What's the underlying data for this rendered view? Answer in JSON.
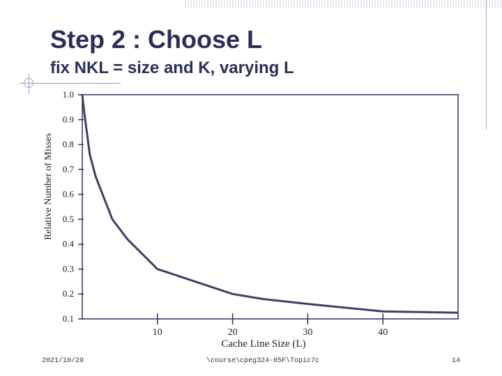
{
  "slide": {
    "title": "Step 2 : Choose L",
    "subtitle": "fix NKL = size and K, varying L"
  },
  "footer": {
    "date": "2021/10/29",
    "path": "\\course\\cpeg324-05F\\Topic7c",
    "page": "14"
  },
  "chart_data": {
    "type": "line",
    "title": "",
    "xlabel": "Cache Line Size (L)",
    "ylabel": "Relative Number of Misses",
    "xlim": [
      0,
      50
    ],
    "ylim": [
      0.1,
      1.0
    ],
    "x_ticks": [
      10,
      20,
      30,
      40
    ],
    "x_tick_labels": [
      "10",
      "20",
      "30",
      "40"
    ],
    "y_ticks": [
      1.0,
      0.9,
      0.8,
      0.7,
      0.6,
      0.5,
      0.4,
      0.3,
      0.2,
      0.1
    ],
    "y_tick_labels": [
      "1.0",
      "0.9",
      "0.8",
      "0.7",
      "0.6",
      "0.5",
      "0.4",
      "0.3",
      "0.2",
      "0.1"
    ],
    "grid": false,
    "legend": "none",
    "line_color": "#3d3f66",
    "series": [
      {
        "x": [
          0,
          0.3,
          1,
          1.8,
          2.7,
          4,
          6,
          10,
          15,
          20,
          24,
          30,
          40,
          50
        ],
        "y": [
          1.0,
          0.92,
          0.76,
          0.67,
          0.6,
          0.5,
          0.42,
          0.3,
          0.25,
          0.2,
          0.18,
          0.16,
          0.13,
          0.125
        ]
      }
    ]
  }
}
